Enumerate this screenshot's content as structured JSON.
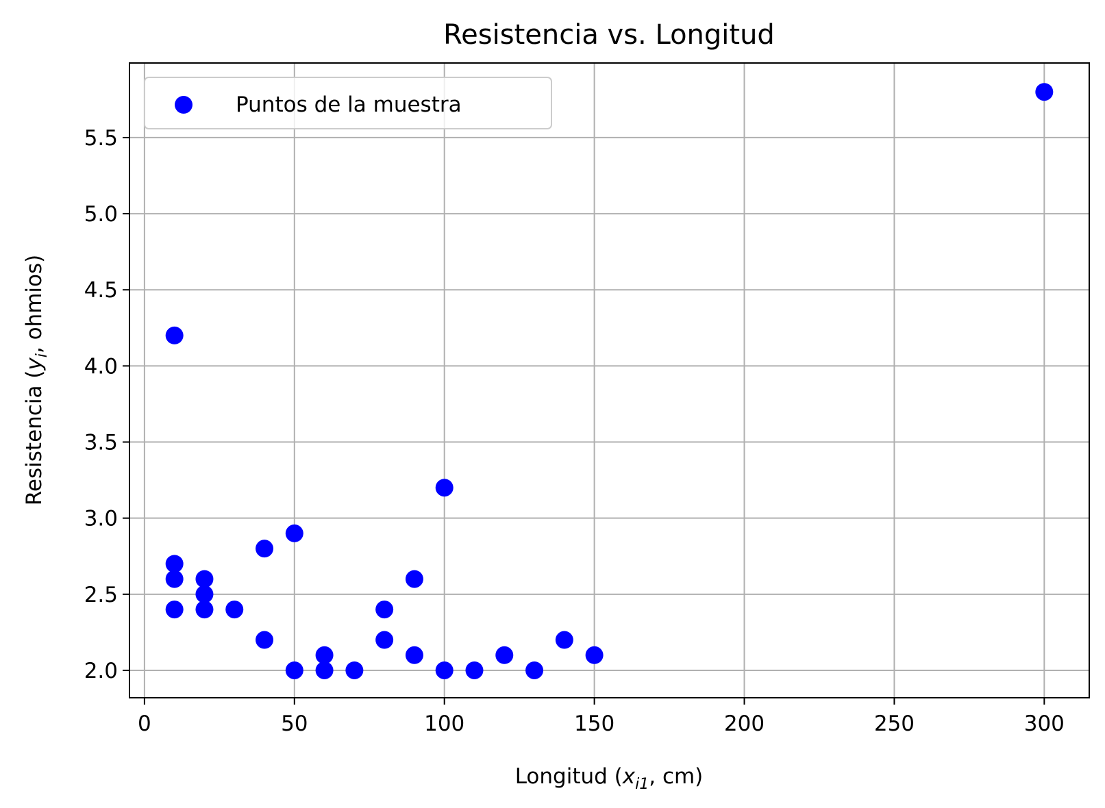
{
  "chart_data": {
    "type": "scatter",
    "title": "Resistencia vs. Longitud",
    "xlabel": {
      "pre": "Longitud (",
      "var": "x",
      "sub": "i1",
      "post": ", cm)"
    },
    "ylabel": {
      "pre": "Resistencia (",
      "var": "y",
      "sub": "i",
      "post": ", ohmios)"
    },
    "xlim": [
      -5,
      315
    ],
    "ylim": [
      1.82,
      5.99
    ],
    "xticks": [
      0,
      50,
      100,
      150,
      200,
      250,
      300
    ],
    "yticks": [
      2.0,
      2.5,
      3.0,
      3.5,
      4.0,
      4.5,
      5.0,
      5.5
    ],
    "grid": true,
    "legend_position": "top-left",
    "series": [
      {
        "name": "Puntos de la muestra",
        "color": "#0000ff",
        "points": [
          [
            10,
            4.2
          ],
          [
            10,
            2.7
          ],
          [
            10,
            2.6
          ],
          [
            10,
            2.4
          ],
          [
            20,
            2.6
          ],
          [
            20,
            2.5
          ],
          [
            20,
            2.4
          ],
          [
            30,
            2.4
          ],
          [
            40,
            2.8
          ],
          [
            40,
            2.2
          ],
          [
            50,
            2.9
          ],
          [
            50,
            2.0
          ],
          [
            60,
            2.1
          ],
          [
            60,
            2.0
          ],
          [
            70,
            2.0
          ],
          [
            80,
            2.4
          ],
          [
            80,
            2.2
          ],
          [
            90,
            2.6
          ],
          [
            90,
            2.1
          ],
          [
            100,
            3.2
          ],
          [
            100,
            2.0
          ],
          [
            110,
            2.0
          ],
          [
            120,
            2.1
          ],
          [
            130,
            2.0
          ],
          [
            140,
            2.2
          ],
          [
            150,
            2.1
          ],
          [
            300,
            5.8
          ]
        ]
      }
    ]
  }
}
